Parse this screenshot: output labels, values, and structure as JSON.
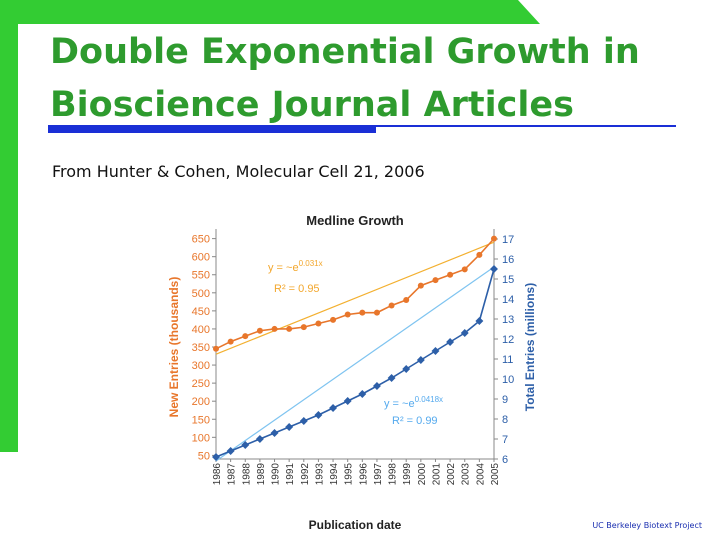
{
  "slide": {
    "title": "Double Exponential Growth in Bioscience Journal Articles",
    "subtitle": "From Hunter & Cohen, Molecular Cell 21, 2006",
    "footer": "UC Berkeley Biotext Project",
    "accent_green": "#33cc33",
    "title_color": "#2e9b2e",
    "rule_blue": "#1a2fd6"
  },
  "chart_data": {
    "type": "line",
    "title": "Medline Growth",
    "xlabel": "Publication date",
    "ylabel_left": "New Entries (thousands)",
    "ylabel_right": "Total Entries (millions)",
    "categories": [
      "1986",
      "1987",
      "1988",
      "1989",
      "1990",
      "1991",
      "1992",
      "1993",
      "1994",
      "1995",
      "1996",
      "1997",
      "1998",
      "1999",
      "2000",
      "2001",
      "2002",
      "2003",
      "2004",
      "2005"
    ],
    "left_ticks": [
      50,
      100,
      150,
      200,
      250,
      300,
      350,
      400,
      450,
      500,
      550,
      600,
      650
    ],
    "right_ticks": [
      6,
      7,
      8,
      9,
      10,
      11,
      12,
      13,
      14,
      15,
      16,
      17
    ],
    "ylim_left": [
      40,
      660
    ],
    "ylim_right": [
      6,
      17.2
    ],
    "series": [
      {
        "axis": "left",
        "color": "#e8762b",
        "values": [
          345,
          365,
          380,
          395,
          400,
          400,
          405,
          415,
          425,
          440,
          445,
          445,
          465,
          480,
          520,
          535,
          550,
          565,
          605,
          650
        ]
      },
      {
        "axis": "right",
        "color": "#2d5fa8",
        "values": [
          6.1,
          6.4,
          6.7,
          7.0,
          7.3,
          7.6,
          7.9,
          8.2,
          8.55,
          8.9,
          9.25,
          9.65,
          10.05,
          10.5,
          10.95,
          11.4,
          11.85,
          12.3,
          12.9,
          15.5
        ]
      }
    ],
    "annotations": [
      {
        "text_base": "y = ~e",
        "text_exp": "0.031x",
        "r2": "R² = 0.95",
        "color": "#f3a72d"
      },
      {
        "text_base": "y = ~e",
        "text_exp": "0.0418x",
        "r2": "R² = 0.99",
        "color": "#55aaee"
      }
    ],
    "legend": "none",
    "grid": false
  }
}
